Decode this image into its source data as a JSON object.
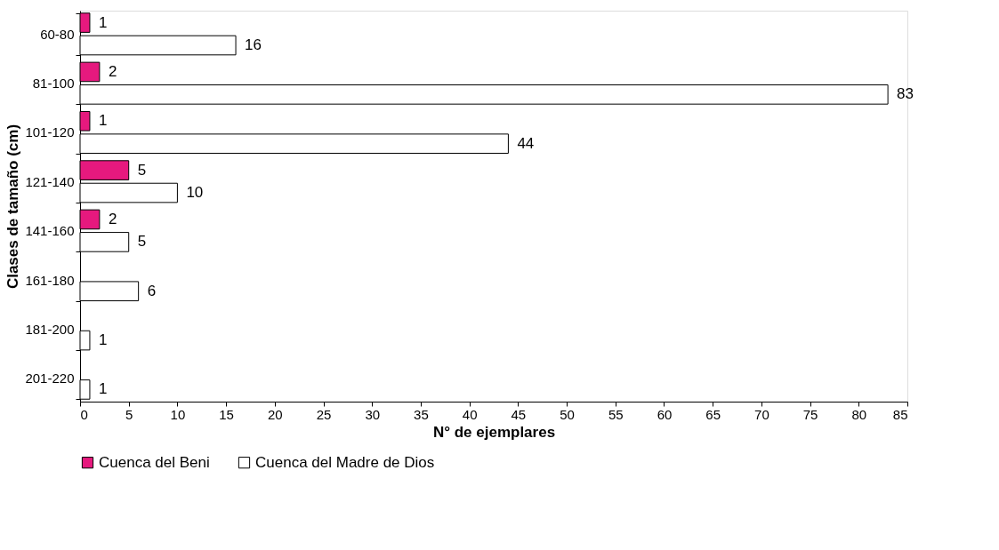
{
  "chart_data": {
    "type": "bar",
    "orientation": "horizontal",
    "xlabel": "N° de ejemplares",
    "ylabel": "Clases de tamaño (cm)",
    "categories": [
      "60-80",
      "81-100",
      "101-120",
      "121-140",
      "141-160",
      "161-180",
      "181-200",
      "201-220"
    ],
    "series": [
      {
        "name": "Cuenca del Beni",
        "color": "#e6197e",
        "values": [
          1,
          2,
          1,
          5,
          2,
          null,
          null,
          null
        ]
      },
      {
        "name": "Cuenca del Madre de Dios",
        "color": "#ffffff",
        "values": [
          16,
          83,
          44,
          10,
          5,
          6,
          1,
          1
        ]
      }
    ],
    "xlim": [
      0,
      85
    ],
    "xticks": [
      0,
      5,
      10,
      15,
      20,
      25,
      30,
      35,
      40,
      45,
      50,
      55,
      60,
      65,
      70,
      75,
      80,
      85
    ],
    "data_labels": true,
    "legend": "bottom",
    "grid": false
  }
}
